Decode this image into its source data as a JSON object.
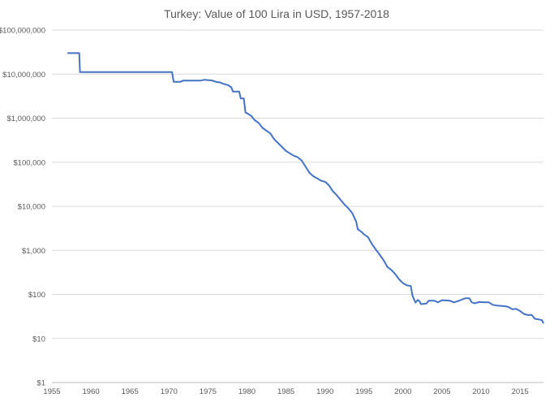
{
  "chart_data": {
    "type": "line",
    "title": "Turkey: Value of 100 Lira in USD, 1957-2018",
    "xlabel": "",
    "ylabel": "",
    "x_scale": "linear",
    "y_scale": "log",
    "xlim": [
      1955,
      2018
    ],
    "ylim": [
      1,
      100000000
    ],
    "grid": "horizontal",
    "legend": "none",
    "color": "#4472c4",
    "x_ticks": [
      "1955",
      "1960",
      "1965",
      "1970",
      "1975",
      "1980",
      "1985",
      "1990",
      "1995",
      "2000",
      "2005",
      "2010",
      "2015"
    ],
    "y_ticks": [
      "$1",
      "$10",
      "$100",
      "$1,000",
      "$10,000",
      "$100,000",
      "$1,000,000",
      "$10,000,000",
      "$100,000,000"
    ],
    "series": [
      {
        "values": [
          [
            1957.0,
            30000000
          ],
          [
            1958.5,
            30000000
          ],
          [
            1958.6,
            11100000
          ],
          [
            1970.4,
            11100000
          ],
          [
            1970.6,
            6700000
          ],
          [
            1971.5,
            6700000
          ],
          [
            1971.8,
            7100000
          ],
          [
            1974.0,
            7100000
          ],
          [
            1974.5,
            7400000
          ],
          [
            1975.5,
            7200000
          ],
          [
            1976.0,
            6700000
          ],
          [
            1976.5,
            6500000
          ],
          [
            1977.0,
            6000000
          ],
          [
            1977.6,
            5600000
          ],
          [
            1978.0,
            5000000
          ],
          [
            1978.2,
            4000000
          ],
          [
            1979.0,
            4000000
          ],
          [
            1979.2,
            2800000
          ],
          [
            1979.6,
            2800000
          ],
          [
            1979.8,
            1350000
          ],
          [
            1980.5,
            1150000
          ],
          [
            1981.0,
            900000
          ],
          [
            1981.5,
            780000
          ],
          [
            1982.0,
            600000
          ],
          [
            1983.0,
            450000
          ],
          [
            1983.5,
            330000
          ],
          [
            1984.0,
            270000
          ],
          [
            1984.5,
            220000
          ],
          [
            1985.0,
            180000
          ],
          [
            1986.0,
            140000
          ],
          [
            1986.5,
            130000
          ],
          [
            1987.0,
            110000
          ],
          [
            1987.5,
            80000
          ],
          [
            1988.0,
            58000
          ],
          [
            1988.5,
            48000
          ],
          [
            1989.0,
            43000
          ],
          [
            1989.5,
            38000
          ],
          [
            1990.0,
            36000
          ],
          [
            1990.5,
            30000
          ],
          [
            1991.0,
            22000
          ],
          [
            1991.5,
            18000
          ],
          [
            1992.0,
            14000
          ],
          [
            1992.5,
            11000
          ],
          [
            1993.0,
            9000
          ],
          [
            1993.5,
            7000
          ],
          [
            1994.0,
            4500
          ],
          [
            1994.2,
            3000
          ],
          [
            1994.6,
            2700
          ],
          [
            1995.0,
            2300
          ],
          [
            1995.5,
            2000
          ],
          [
            1996.0,
            1400
          ],
          [
            1996.5,
            1050
          ],
          [
            1997.0,
            800
          ],
          [
            1997.5,
            600
          ],
          [
            1998.0,
            420
          ],
          [
            1998.5,
            360
          ],
          [
            1999.0,
            290
          ],
          [
            1999.5,
            220
          ],
          [
            2000.0,
            180
          ],
          [
            2000.5,
            160
          ],
          [
            2001.0,
            155
          ],
          [
            2001.2,
            95
          ],
          [
            2001.6,
            65
          ],
          [
            2001.9,
            75
          ],
          [
            2002.1,
            70
          ],
          [
            2002.3,
            60
          ],
          [
            2003.0,
            62
          ],
          [
            2003.3,
            72
          ],
          [
            2004.0,
            72
          ],
          [
            2004.5,
            66
          ],
          [
            2005.0,
            74
          ],
          [
            2006.0,
            72
          ],
          [
            2006.5,
            66
          ],
          [
            2007.0,
            70
          ],
          [
            2007.5,
            76
          ],
          [
            2008.0,
            82
          ],
          [
            2008.5,
            82
          ],
          [
            2008.8,
            66
          ],
          [
            2009.2,
            63
          ],
          [
            2009.8,
            67
          ],
          [
            2010.5,
            66
          ],
          [
            2011.0,
            66
          ],
          [
            2011.5,
            58
          ],
          [
            2012.0,
            56
          ],
          [
            2013.0,
            54
          ],
          [
            2013.5,
            52
          ],
          [
            2014.0,
            46
          ],
          [
            2014.5,
            47
          ],
          [
            2015.0,
            42
          ],
          [
            2015.5,
            36
          ],
          [
            2016.0,
            34
          ],
          [
            2016.5,
            34
          ],
          [
            2016.9,
            28
          ],
          [
            2017.4,
            27
          ],
          [
            2017.8,
            26
          ],
          [
            2018.0,
            22
          ]
        ]
      }
    ]
  }
}
